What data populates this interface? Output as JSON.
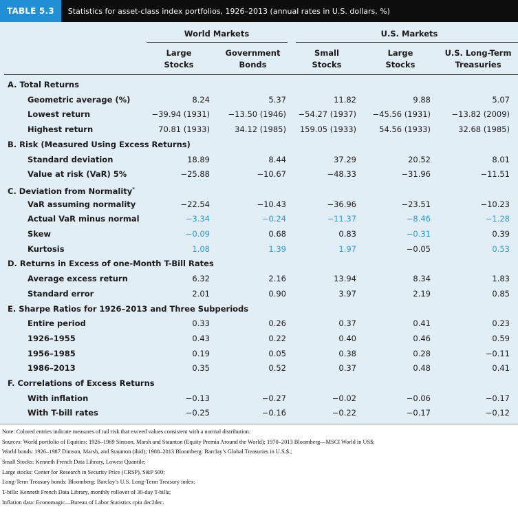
{
  "table": {
    "label": "TABLE 5.3",
    "title": "Statistics for asset-class index portfolios, 1926–2013 (annual rates in U.S. dollars, %)",
    "group_world": "World Markets",
    "group_us": "U.S. Markets",
    "columns": [
      {
        "line1": "Large",
        "line2": "Stocks"
      },
      {
        "line1": "Government",
        "line2": "Bonds"
      },
      {
        "line1": "Small",
        "line2": "Stocks"
      },
      {
        "line1": "Large",
        "line2": "Stocks"
      },
      {
        "line1": "U.S. Long-Term",
        "line2": "Treasuries"
      }
    ],
    "highlight_color": "#2a9ad8",
    "header_accent": "#1f8fd6",
    "table_bg": "#e1eef6"
  },
  "rows": [
    {
      "type": "section",
      "label": "A. Total Returns"
    },
    {
      "type": "data",
      "label": "Geometric average (%)",
      "values": [
        "8.24",
        "5.37",
        "11.82",
        "9.88",
        "5.07"
      ]
    },
    {
      "type": "data",
      "label": "Lowest return",
      "values": [
        "−39.94 (1931)",
        "−13.50 (1946)",
        "−54.27 (1937)",
        "−45.56 (1931)",
        "−13.82 (2009)"
      ]
    },
    {
      "type": "data",
      "label": "Highest return",
      "values": [
        "70.81 (1933)",
        "34.12 (1985)",
        "159.05 (1933)",
        "54.56 (1933)",
        "32.68 (1985)"
      ]
    },
    {
      "type": "section",
      "label": "B. Risk (Measured Using Excess Returns)"
    },
    {
      "type": "data",
      "label": "Standard deviation",
      "values": [
        "18.89",
        "8.44",
        "37.29",
        "20.52",
        "8.01"
      ]
    },
    {
      "type": "data",
      "label": "Value at risk (VaR) 5%",
      "values": [
        "−25.88",
        "−10.67",
        "−48.33",
        "−31.96",
        "−11.51"
      ]
    },
    {
      "type": "section",
      "label": "C. Deviation from Normality",
      "sup": "*"
    },
    {
      "type": "data",
      "label": "VaR assuming normality",
      "values": [
        "−22.54",
        "−10.43",
        "−36.96",
        "−23.51",
        "−10.23"
      ]
    },
    {
      "type": "data",
      "label": "Actual VaR minus normal",
      "values": [
        "−3.34",
        "−0.24",
        "−11.37",
        "−8.46",
        "−1.28"
      ],
      "blue": [
        true,
        true,
        true,
        true,
        true
      ]
    },
    {
      "type": "data",
      "label": "Skew",
      "values": [
        "−0.09",
        "0.68",
        "0.83",
        "−0.31",
        "0.39"
      ],
      "blue": [
        true,
        false,
        false,
        true,
        false
      ]
    },
    {
      "type": "data",
      "label": "Kurtosis",
      "values": [
        "1.08",
        "1.39",
        "1.97",
        "−0.05",
        "0.53"
      ],
      "blue": [
        true,
        true,
        true,
        false,
        true
      ]
    },
    {
      "type": "section",
      "label": "D. Returns in Excess of one-Month T-Bill Rates"
    },
    {
      "type": "data",
      "label": "Average excess return",
      "values": [
        "6.32",
        "2.16",
        "13.94",
        "8.34",
        "1.83"
      ]
    },
    {
      "type": "data",
      "label": "Standard error",
      "values": [
        "2.01",
        "0.90",
        "3.97",
        "2.19",
        "0.85"
      ]
    },
    {
      "type": "section",
      "label": "E. Sharpe Ratios for 1926–2013 and Three Subperiods"
    },
    {
      "type": "data",
      "label": "Entire period",
      "values": [
        "0.33",
        "0.26",
        "0.37",
        "0.41",
        "0.23"
      ]
    },
    {
      "type": "data",
      "label": "1926–1955",
      "values": [
        "0.43",
        "0.22",
        "0.40",
        "0.46",
        "0.59"
      ]
    },
    {
      "type": "data",
      "label": "1956–1985",
      "values": [
        "0.19",
        "0.05",
        "0.38",
        "0.28",
        "−0.11"
      ]
    },
    {
      "type": "data",
      "label": "1986–2013",
      "values": [
        "0.35",
        "0.52",
        "0.37",
        "0.48",
        "0.41"
      ]
    },
    {
      "type": "section",
      "label": "F. Correlations of Excess Returns"
    },
    {
      "type": "data",
      "label": "With inflation",
      "values": [
        "−0.13",
        "−0.27",
        "−0.02",
        "−0.06",
        "−0.17"
      ]
    },
    {
      "type": "data",
      "label": "With T-bill rates",
      "values": [
        "−0.25",
        "−0.16",
        "−0.22",
        "−0.17",
        "−0.12"
      ]
    }
  ],
  "notes": [
    "Note: Colored entries indicate measures of tail risk that exceed values consistent with a normal distribution.",
    "Sources: World portfolio of Equities: 1926–1969 Simson, Marsh and Staunton (Equity Premia Around the World); 1970–2013 Bloomberg—MSCI World in US$;",
    "World bonds: 1926–1987 Dimson, Marsh, and Staunton (ibid); 1988–2013 Bloomberg: Barclay’s Global Treasuries in U.S.$.;",
    "Small Stocks: Kenneth French Data Library, Lowest Quantile;",
    "Large stocks: Center for Research in Security Price (CRSP), S&P 500;",
    "Long-Term Treasury bonds: Bloomberg: Barclay’s U.S. Long-Term Treasury index;",
    "T-bills: Kenneth French Data Library, monthly rollover of 30-day T-bills;",
    "Inflation data: Economagic—Bureau of Labor Statistics cpiu dec2dec."
  ]
}
